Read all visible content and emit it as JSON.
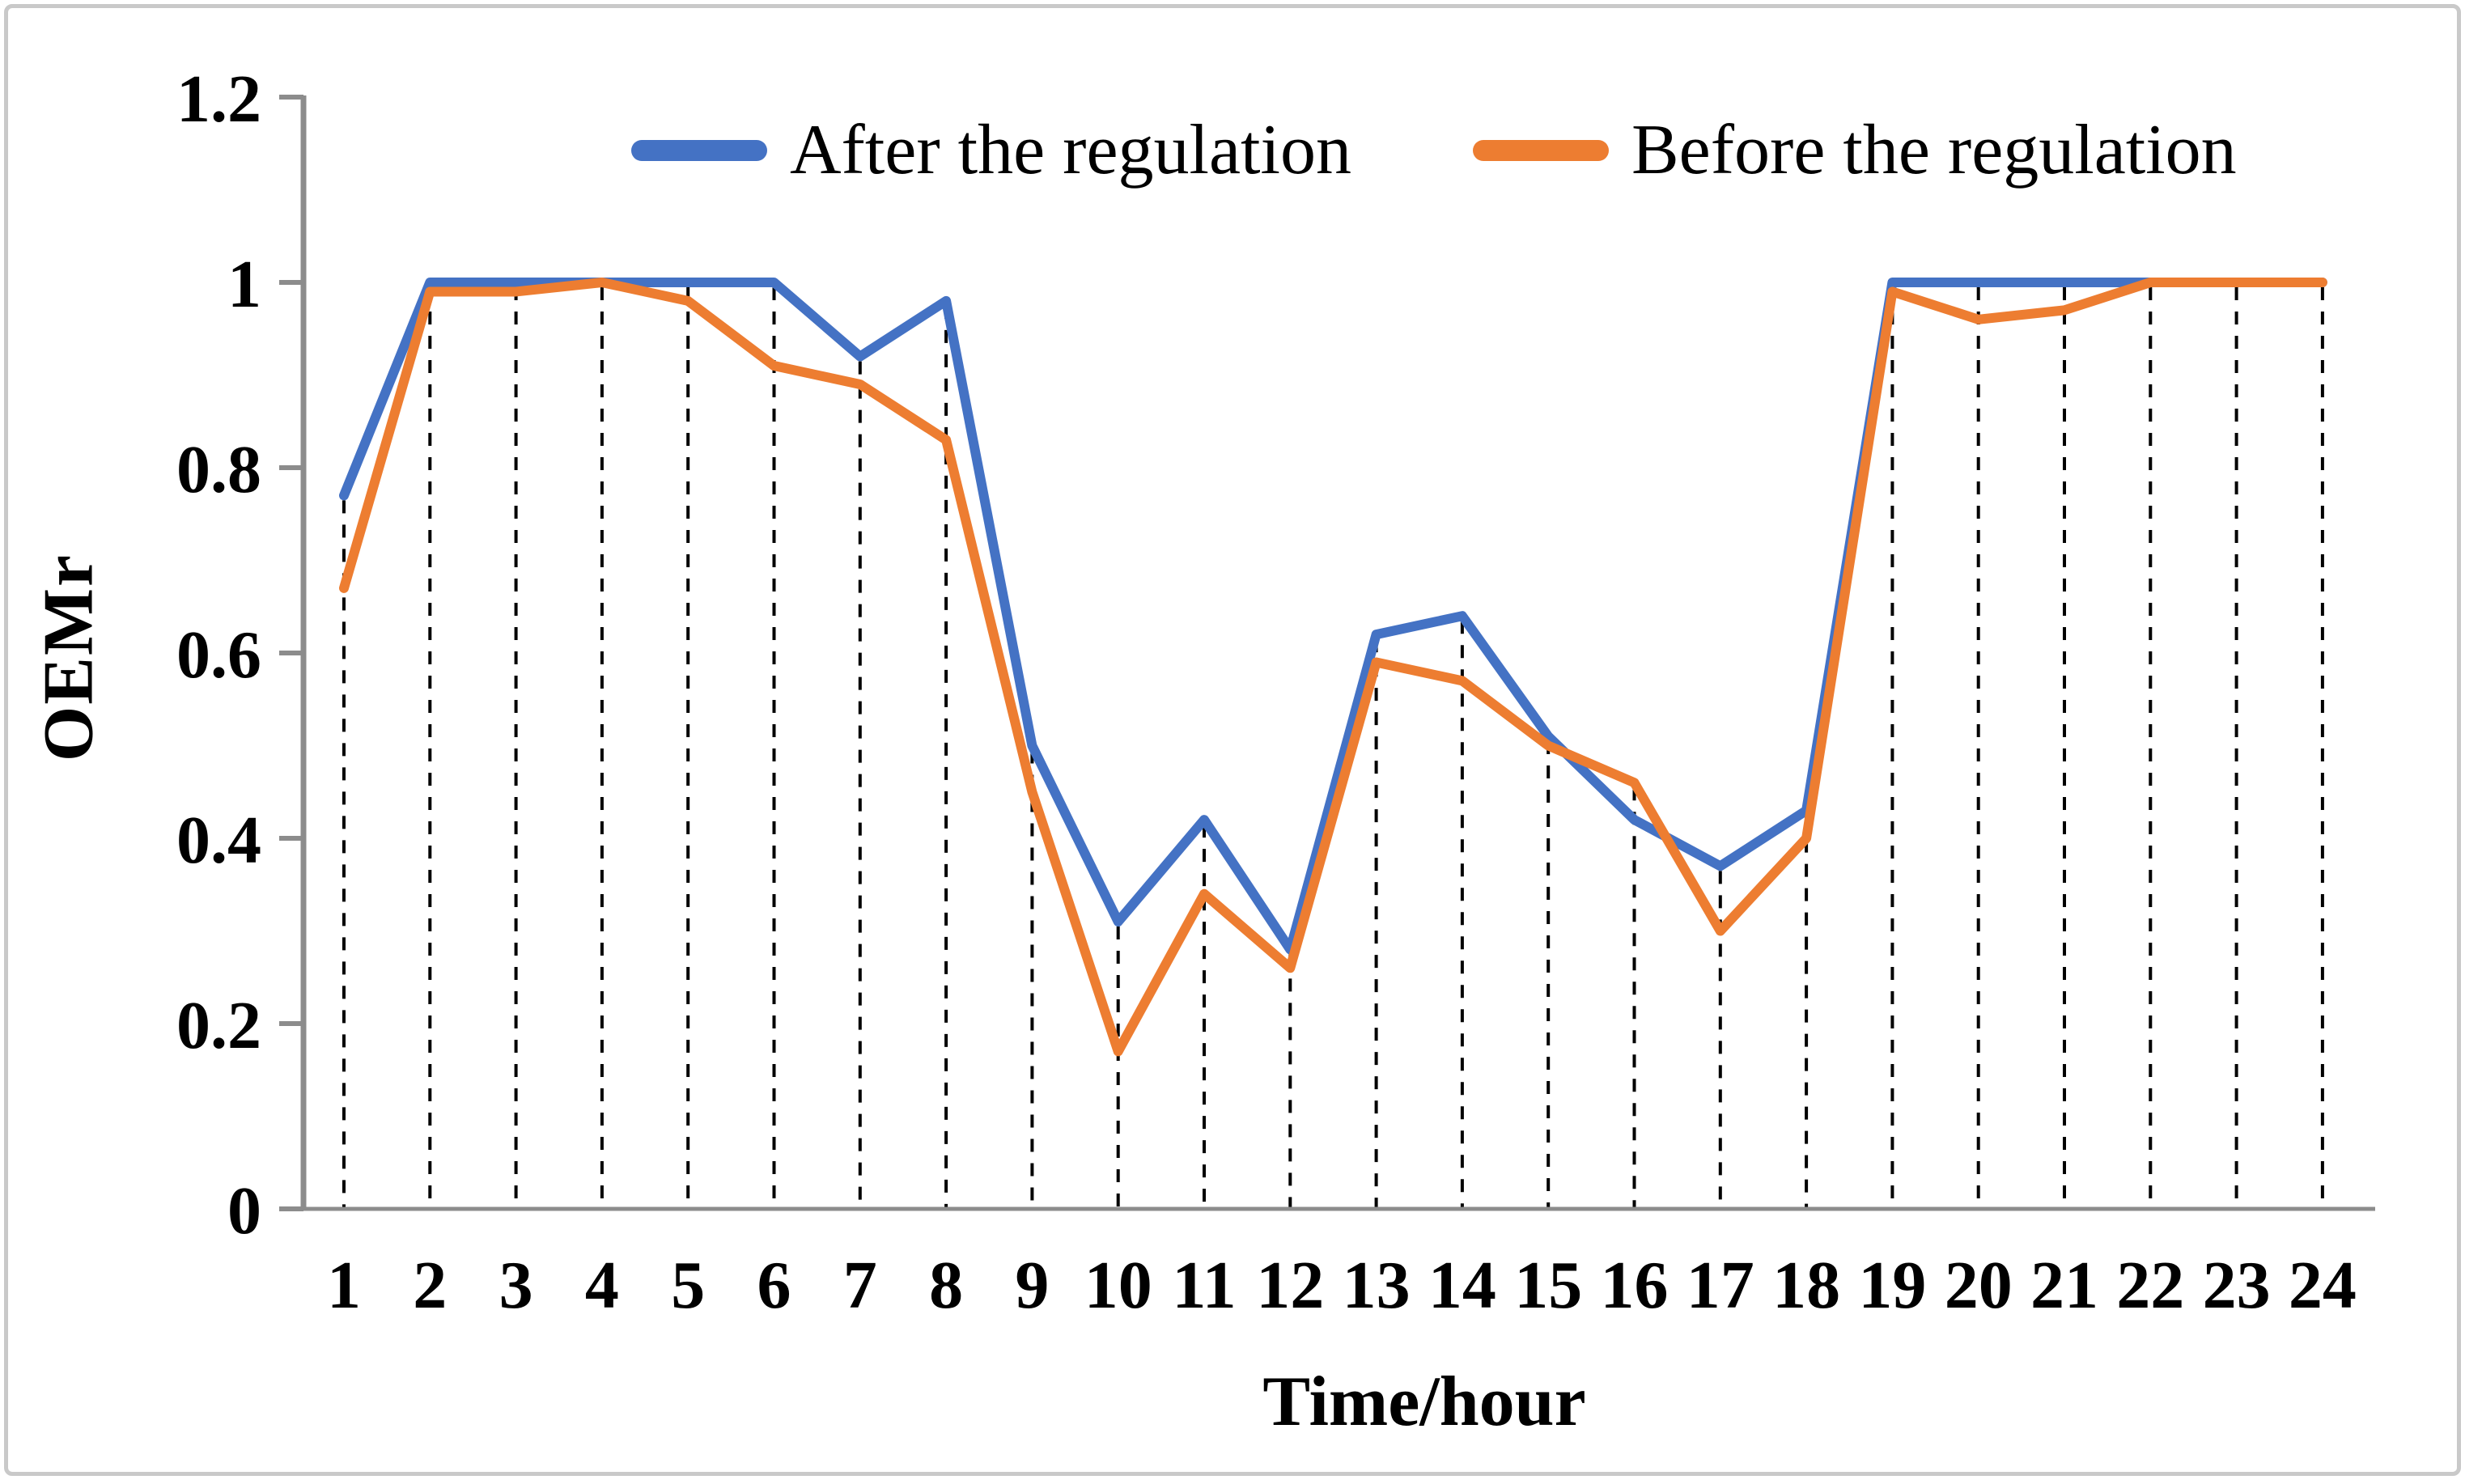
{
  "chart_data": {
    "type": "line",
    "title": "",
    "xlabel": "Time/hour",
    "ylabel": "OEMr",
    "x": [
      1,
      2,
      3,
      4,
      5,
      6,
      7,
      8,
      9,
      10,
      11,
      12,
      13,
      14,
      15,
      16,
      17,
      18,
      19,
      20,
      21,
      22,
      23,
      24
    ],
    "ylim": [
      0,
      1.2
    ],
    "yticks": [
      0,
      0.2,
      0.4,
      0.6,
      0.8,
      1,
      1.2
    ],
    "ytick_labels": [
      "0",
      "0.2",
      "0.4",
      "0.6",
      "0.8",
      "1",
      "1.2"
    ],
    "grid": "vertical-droplines-dashed",
    "legend_position": "top-center-inside",
    "series": [
      {
        "name": "After the regulation",
        "color": "#4472C4",
        "values": [
          0.77,
          1,
          1,
          1,
          1,
          1,
          0.92,
          0.98,
          0.5,
          0.31,
          0.42,
          0.28,
          0.62,
          0.64,
          0.51,
          0.42,
          0.37,
          0.43,
          1,
          1,
          1,
          1,
          1,
          1
        ]
      },
      {
        "name": "Before the regulation",
        "color": "#ED7D31",
        "values": [
          0.67,
          0.99,
          0.99,
          1,
          0.98,
          0.91,
          0.89,
          0.83,
          0.45,
          0.17,
          0.34,
          0.26,
          0.59,
          0.57,
          0.5,
          0.46,
          0.3,
          0.4,
          0.99,
          0.96,
          0.97,
          1,
          1,
          1
        ]
      }
    ],
    "axis_color": "#8c8c8c",
    "dropline_color": "#000000",
    "background": "#ffffff",
    "frame_color": "#c9c9c9"
  }
}
